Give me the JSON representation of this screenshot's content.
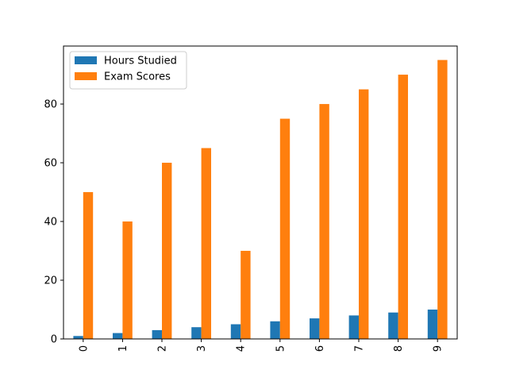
{
  "chart_data": {
    "type": "bar",
    "categories": [
      "0",
      "1",
      "2",
      "3",
      "4",
      "5",
      "6",
      "7",
      "8",
      "9"
    ],
    "series": [
      {
        "name": "Hours Studied",
        "color": "#1f77b4",
        "values": [
          1,
          2,
          3,
          4,
          5,
          6,
          7,
          8,
          9,
          10
        ]
      },
      {
        "name": "Exam Scores",
        "color": "#ff7f0e",
        "values": [
          50,
          40,
          60,
          65,
          30,
          75,
          80,
          85,
          90,
          95
        ]
      }
    ],
    "ylim": [
      0,
      99.75
    ],
    "yticks": [
      0,
      20,
      40,
      60,
      80
    ],
    "xtick_rotation": "vertical",
    "grid": false,
    "legend": {
      "placement": "upper-left"
    }
  }
}
